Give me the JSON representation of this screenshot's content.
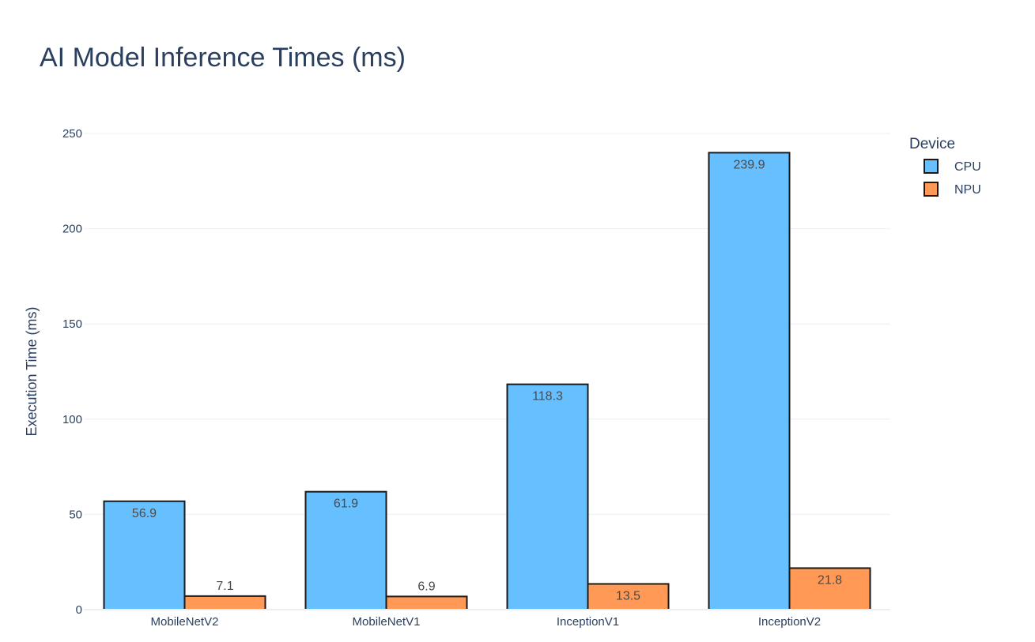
{
  "chart_data": {
    "type": "bar",
    "title": "AI Model Inference Times (ms)",
    "xlabel": "",
    "ylabel": "Execution Time (ms)",
    "categories": [
      "MobileNetV2",
      "MobileNetV1",
      "InceptionV1",
      "InceptionV2"
    ],
    "series": [
      {
        "name": "CPU",
        "values": [
          56.9,
          61.9,
          118.3,
          239.9
        ],
        "labels": [
          "56.9",
          "61.9",
          "118.3",
          "239.9"
        ],
        "color": "#66bfff"
      },
      {
        "name": "NPU",
        "values": [
          7.1,
          6.9,
          13.5,
          21.8
        ],
        "labels": [
          "7.1",
          "6.9",
          "13.5",
          "21.8"
        ],
        "color": "#ff9955"
      }
    ],
    "ylim": [
      0,
      250
    ],
    "yticks": [
      0,
      50,
      100,
      150,
      200,
      250
    ],
    "ytick_labels": [
      "0",
      "50",
      "100",
      "150",
      "200",
      "250"
    ],
    "legend": {
      "title": "Device",
      "position": "top-right"
    },
    "grid": true,
    "bar_outline_color": "#1a1a1a",
    "grid_color": "#ebeff4",
    "text_color": "#2a3f5f",
    "label_color": "#4a4a4a"
  }
}
